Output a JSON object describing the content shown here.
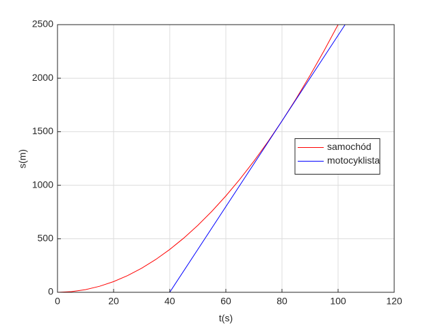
{
  "chart_data": {
    "type": "line",
    "xlabel": "t(s)",
    "ylabel": "s(m)",
    "xlim": [
      0,
      120
    ],
    "xticks": [
      0,
      20,
      40,
      60,
      80,
      100,
      120
    ],
    "ylim": [
      0,
      2500
    ],
    "yticks": [
      0,
      500,
      1000,
      1500,
      2000,
      2500
    ],
    "grid": true,
    "legend_position": "east",
    "series": [
      {
        "name": "samochód",
        "color": "#ff0000",
        "x": [
          0,
          5,
          10,
          15,
          20,
          25,
          30,
          35,
          40,
          45,
          50,
          55,
          60,
          65,
          70,
          75,
          80,
          85,
          90,
          95,
          100
        ],
        "values": [
          0,
          6.25,
          25,
          56.25,
          100,
          156.25,
          225,
          306.25,
          400,
          506.25,
          625,
          756.25,
          900,
          1056.25,
          1225,
          1406.25,
          1600,
          1806.25,
          2025,
          2256.25,
          2500
        ]
      },
      {
        "name": "motocyklista",
        "color": "#0000ff",
        "x": [
          40,
          102.5
        ],
        "values": [
          0,
          2500
        ]
      }
    ]
  }
}
